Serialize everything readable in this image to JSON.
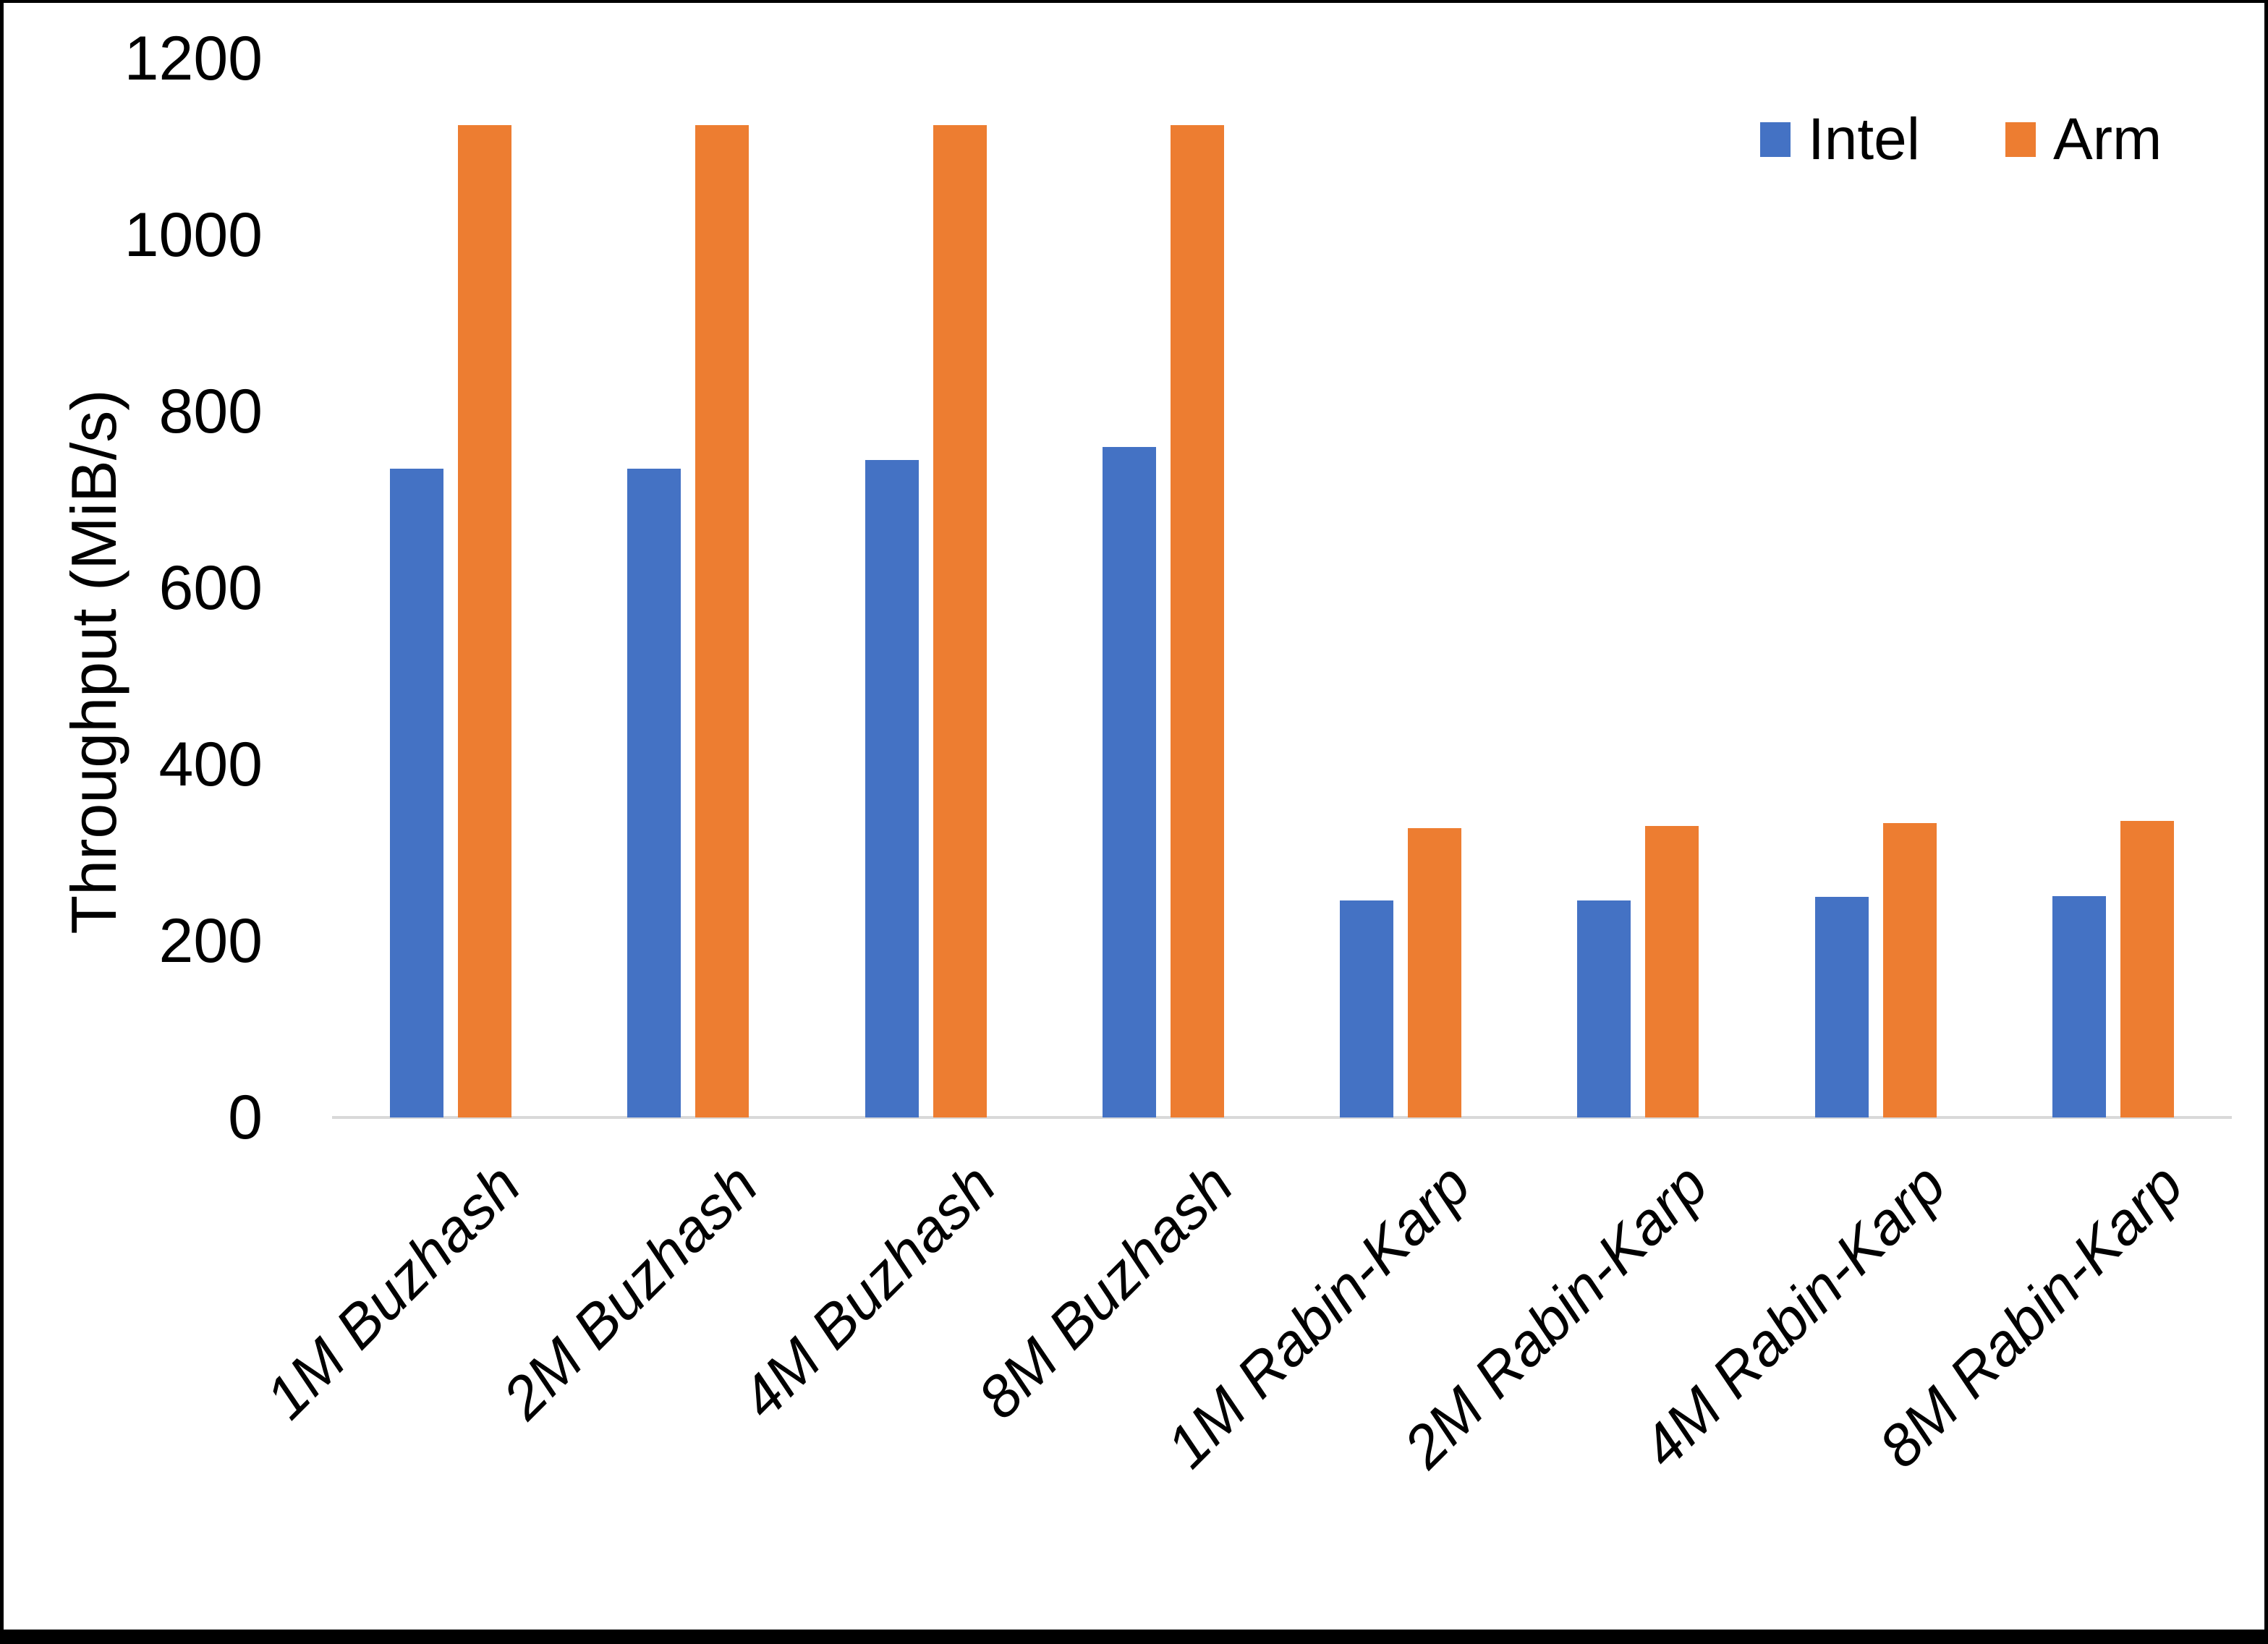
{
  "chart_data": {
    "type": "bar",
    "title": "",
    "ylabel": "Throughput (MiB/s)",
    "xlabel": "",
    "ylim": [
      0,
      1200
    ],
    "ytick_interval": 200,
    "ytick_labels": [
      "0",
      "200",
      "400",
      "600",
      "800",
      "1000",
      "1200"
    ],
    "grid": false,
    "legend_position": "top-right",
    "categories": [
      "1M Buzhash",
      "2M Buzhash",
      "4M Buzhash",
      "8M Buzhash",
      "1M Rabin-Karp",
      "2M Rabin-Karp",
      "4M Rabin-Karp",
      "8M Rabin-Karp"
    ],
    "series": [
      {
        "name": "Intel",
        "color": "#4472C4",
        "values": [
          735,
          735,
          745,
          760,
          246,
          246,
          250,
          251
        ]
      },
      {
        "name": "Arm",
        "color": "#ED7D31",
        "values": [
          1125,
          1125,
          1125,
          1125,
          328,
          330,
          334,
          336
        ]
      }
    ]
  },
  "colors": {
    "background": "#FFFFFF",
    "axis_line": "#D9D9D9",
    "text": "#000000",
    "frame": "#000000"
  }
}
